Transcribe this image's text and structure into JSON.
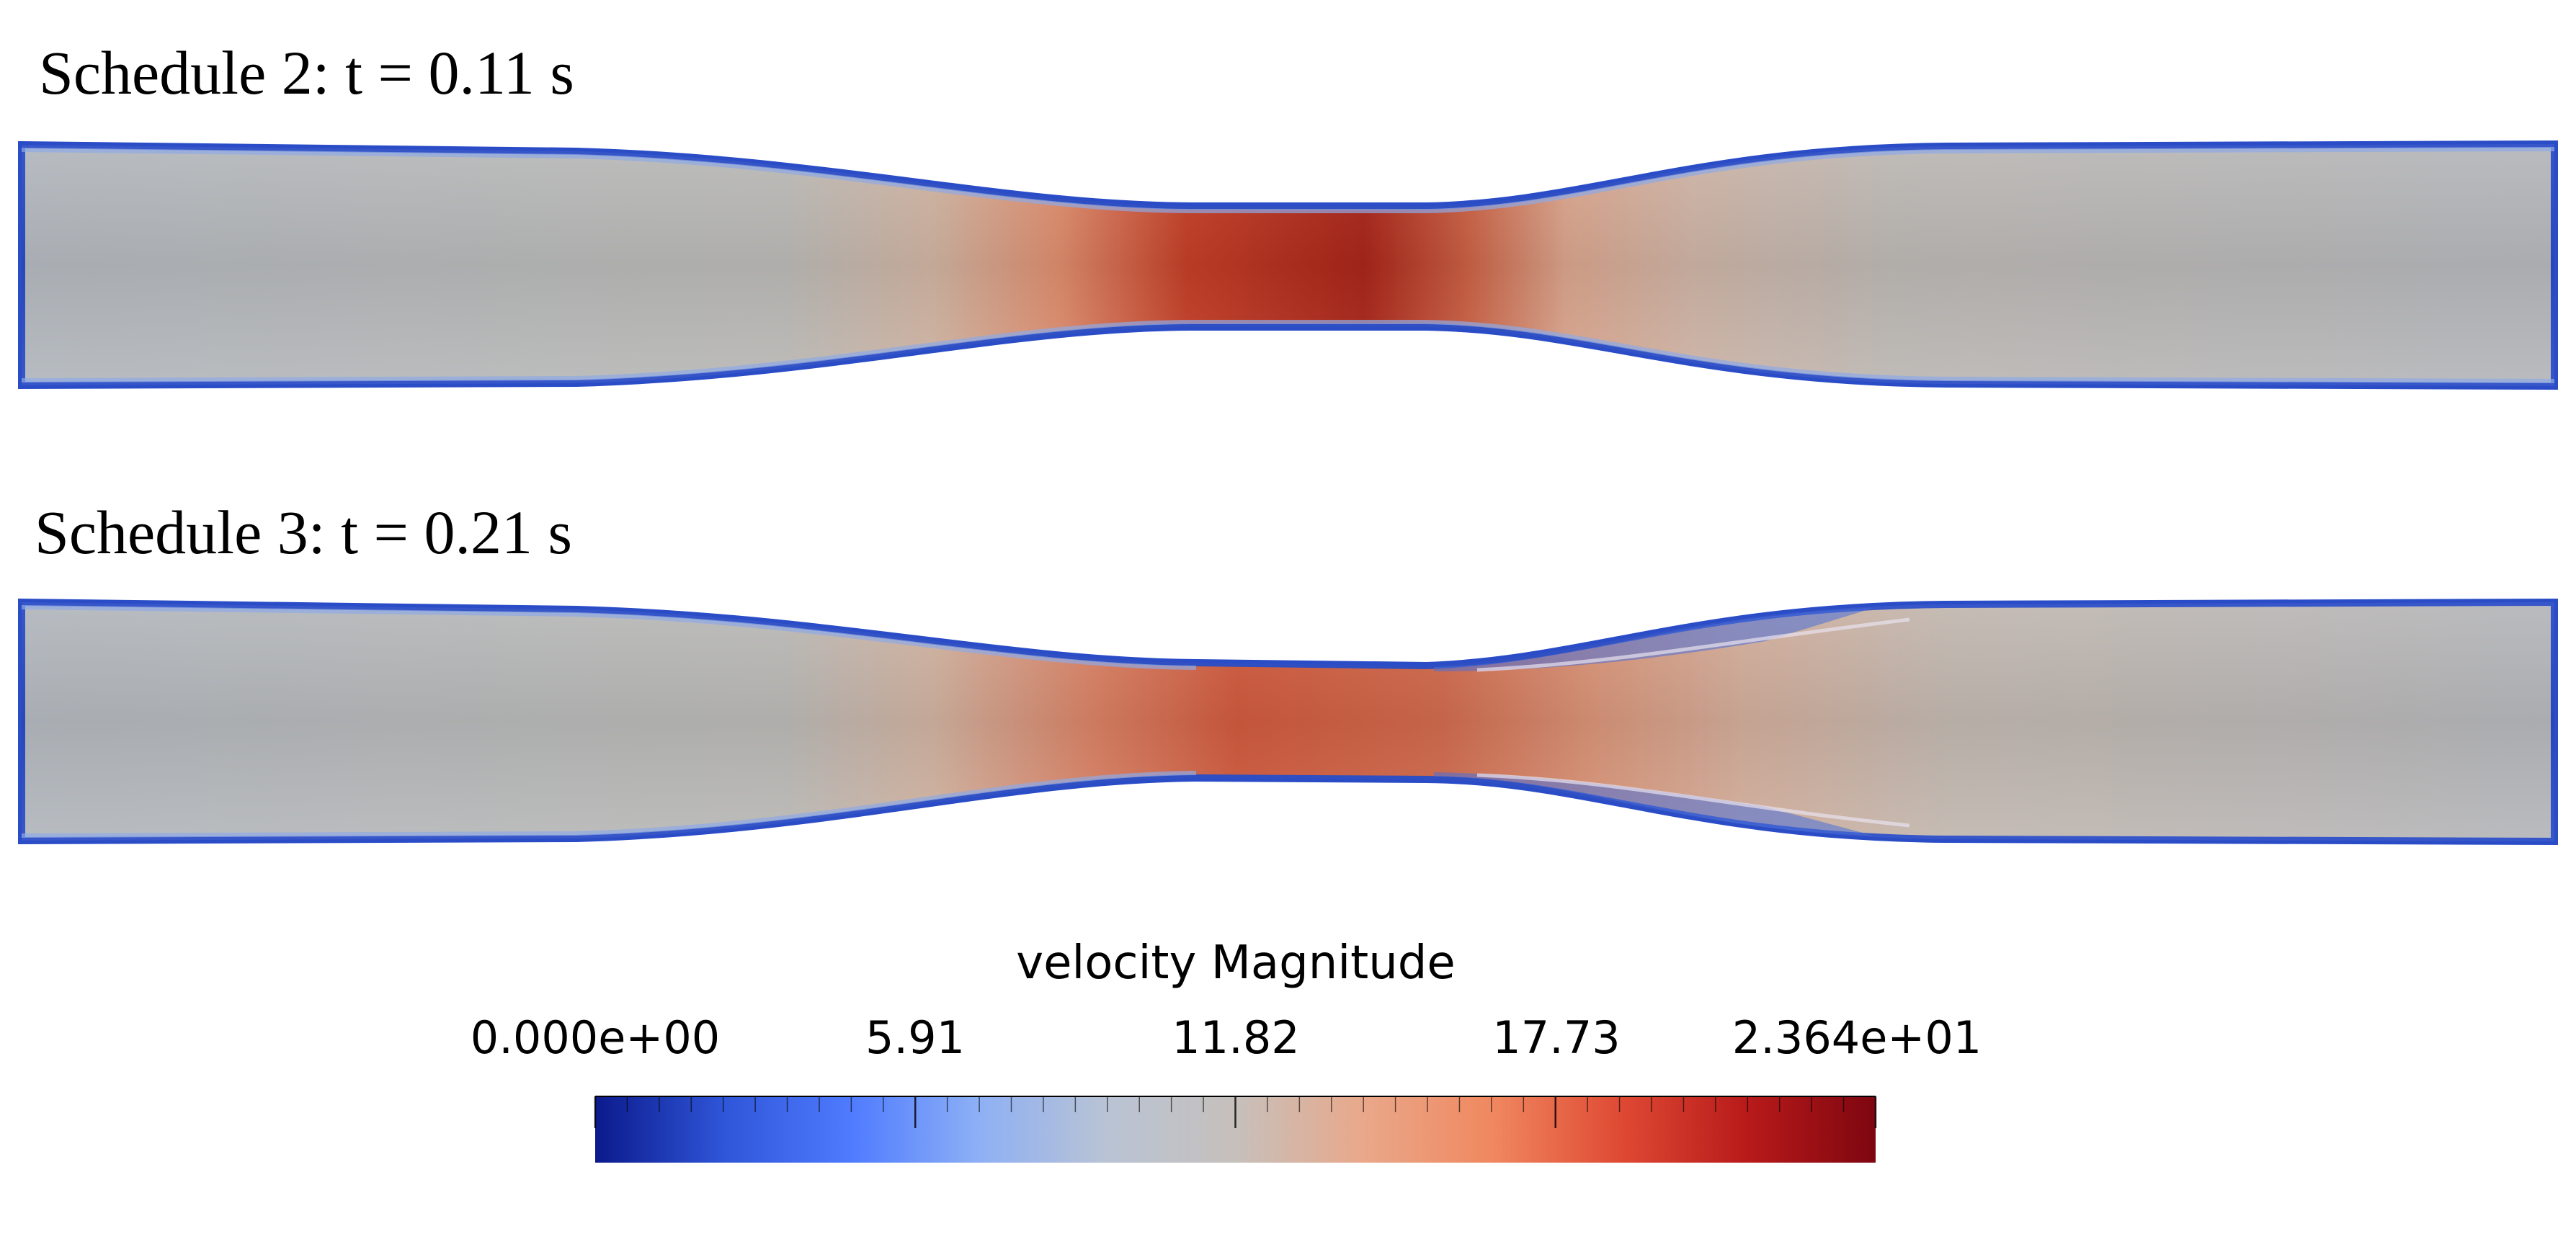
{
  "panels": [
    {
      "title": "Schedule 2: t = 0.11 s"
    },
    {
      "title": "Schedule 3: t = 0.21 s"
    }
  ],
  "colorbar": {
    "title": "velocity Magnitude",
    "tick_labels": [
      "0.000e+00",
      "5.91",
      "11.82",
      "17.73",
      "2.364e+01"
    ],
    "min": 0,
    "max": 23.64,
    "colormap": [
      "#0b1a8c",
      "#2f55d8",
      "#4f7bff",
      "#8eb0f5",
      "#b9c3d4",
      "#c6c0bc",
      "#e9a88a",
      "#f08860",
      "#df4a34",
      "#b81a1a",
      "#7e0610"
    ]
  }
}
